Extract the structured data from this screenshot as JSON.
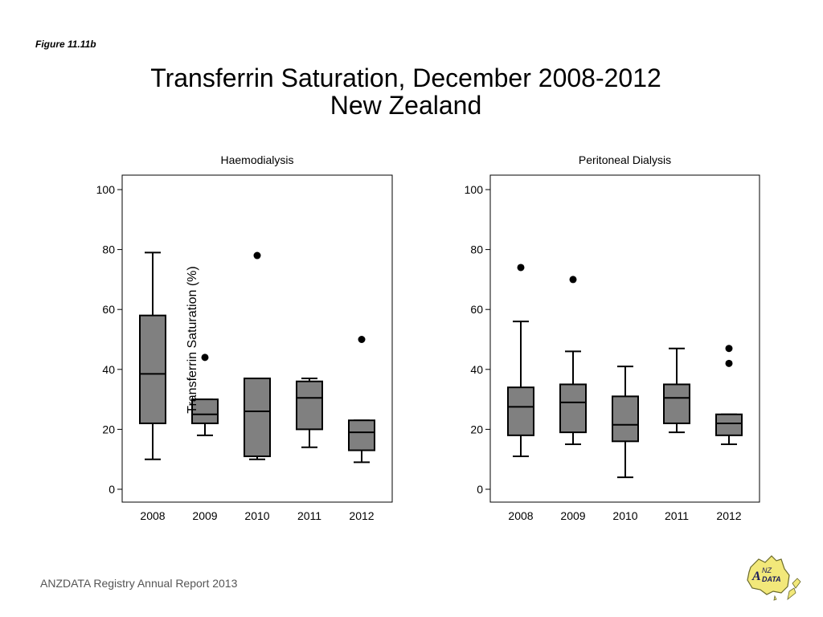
{
  "figure_label": "Figure 11.11b",
  "title_line1": "Transferrin Saturation, December 2008-2012",
  "title_line2": "New Zealand",
  "footer": "ANZDATA Registry Annual Report 2013",
  "logo_text": "ANZDATA",
  "colors": {
    "box_fill": "#808080",
    "stroke": "#000000",
    "logo_fill": "#f2e87a"
  },
  "chart_data": [
    {
      "type": "box",
      "title": "Haemodialysis",
      "ylabel": "Transferrin Saturation (%)",
      "ylim": [
        0,
        100
      ],
      "yticks": [
        0,
        20,
        40,
        60,
        80,
        100
      ],
      "categories": [
        "2008",
        "2009",
        "2010",
        "2011",
        "2012"
      ],
      "boxes": [
        {
          "min": 10,
          "q1": 22,
          "median": 38.5,
          "q3": 58,
          "max": 79,
          "outliers": []
        },
        {
          "min": 18,
          "q1": 22,
          "median": 25,
          "q3": 30,
          "max": 30,
          "outliers": [
            44
          ]
        },
        {
          "min": 10,
          "q1": 11,
          "median": 26,
          "q3": 37,
          "max": 37,
          "outliers": [
            78
          ]
        },
        {
          "min": 14,
          "q1": 20,
          "median": 30.5,
          "q3": 36,
          "max": 37,
          "outliers": []
        },
        {
          "min": 9,
          "q1": 13,
          "median": 19,
          "q3": 23,
          "max": 23,
          "outliers": [
            50
          ]
        }
      ]
    },
    {
      "type": "box",
      "title": "Peritoneal Dialysis",
      "ylim": [
        0,
        100
      ],
      "yticks": [
        0,
        20,
        40,
        60,
        80,
        100
      ],
      "categories": [
        "2008",
        "2009",
        "2010",
        "2011",
        "2012"
      ],
      "boxes": [
        {
          "min": 11,
          "q1": 18,
          "median": 27.5,
          "q3": 34,
          "max": 56,
          "outliers": [
            74
          ]
        },
        {
          "min": 15,
          "q1": 19,
          "median": 29,
          "q3": 35,
          "max": 46,
          "outliers": [
            70
          ]
        },
        {
          "min": 4,
          "q1": 16,
          "median": 21.5,
          "q3": 31,
          "max": 41,
          "outliers": []
        },
        {
          "min": 19,
          "q1": 22,
          "median": 30.5,
          "q3": 35,
          "max": 47,
          "outliers": []
        },
        {
          "min": 15,
          "q1": 18,
          "median": 22,
          "q3": 25,
          "max": 25,
          "outliers": [
            42,
            47
          ]
        }
      ]
    }
  ]
}
